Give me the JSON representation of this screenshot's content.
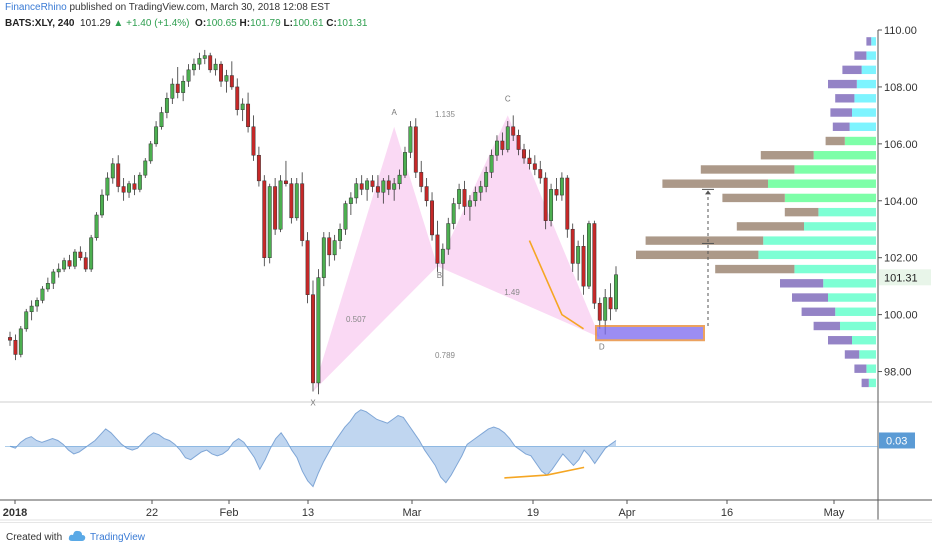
{
  "header": {
    "author": "FinanceRhino",
    "published_text": " published on TradingView.com, March 30, 2018 12:08 EST"
  },
  "ohlc": {
    "symbol": "BATS:XLY, 240",
    "last": "101.29",
    "change": "+1.40 (+1.4%)",
    "open_label": "O:",
    "open": "100.65",
    "high_label": "H:",
    "high": "101.79",
    "low_label": "L:",
    "low": "100.61",
    "close_label": "C:",
    "close": "101.31"
  },
  "footer": {
    "created_with": "Created with",
    "brand": "TradingView",
    "logo_icon": "tradingview-cloud-icon"
  },
  "colors": {
    "up": "#4caf50",
    "down": "#c62828",
    "candle_outline": "#333333",
    "pattern_fill": "#f8ccf0",
    "orange": "#f5a623",
    "target_box": "#7b68ee",
    "osc_fill": "#b9d2ee",
    "osc_line": "#7fa6d6",
    "price_badge": "#e8f5e9",
    "osc_badge": "#5b9bd5"
  },
  "chart_data": {
    "type": "candlestick",
    "price_axis": {
      "ylim": [
        97.0,
        110.0
      ],
      "ticks": [
        "110.00",
        "108.00",
        "106.00",
        "104.00",
        "102.00",
        "100.00",
        "98.00"
      ],
      "current_value_label": "101.31"
    },
    "time_axis": {
      "labels": [
        "2018",
        "22",
        "Feb",
        "13",
        "Mar",
        "19",
        "Apr",
        "16",
        "May"
      ]
    },
    "candles": [
      [
        99.2,
        99.4,
        98.9,
        99.1
      ],
      [
        99.1,
        99.3,
        98.4,
        98.6
      ],
      [
        98.6,
        99.6,
        98.5,
        99.5
      ],
      [
        99.5,
        100.2,
        99.4,
        100.1
      ],
      [
        100.1,
        100.5,
        99.8,
        100.3
      ],
      [
        100.3,
        100.6,
        100.1,
        100.5
      ],
      [
        100.5,
        101.0,
        100.4,
        100.9
      ],
      [
        100.9,
        101.3,
        100.8,
        101.1
      ],
      [
        101.1,
        101.6,
        100.9,
        101.5
      ],
      [
        101.5,
        101.8,
        101.3,
        101.6
      ],
      [
        101.6,
        102.0,
        101.5,
        101.9
      ],
      [
        101.9,
        102.1,
        101.6,
        101.7
      ],
      [
        101.7,
        102.3,
        101.6,
        102.2
      ],
      [
        102.2,
        102.4,
        101.9,
        102.0
      ],
      [
        102.0,
        102.2,
        101.5,
        101.6
      ],
      [
        101.6,
        102.8,
        101.5,
        102.7
      ],
      [
        102.7,
        103.6,
        102.6,
        103.5
      ],
      [
        103.5,
        104.4,
        103.4,
        104.2
      ],
      [
        104.2,
        105.0,
        104.0,
        104.8
      ],
      [
        104.8,
        105.5,
        104.6,
        105.3
      ],
      [
        105.3,
        105.6,
        104.3,
        104.5
      ],
      [
        104.5,
        104.8,
        104.0,
        104.3
      ],
      [
        104.3,
        104.7,
        104.1,
        104.6
      ],
      [
        104.6,
        104.9,
        104.2,
        104.4
      ],
      [
        104.4,
        105.0,
        104.3,
        104.9
      ],
      [
        104.9,
        105.5,
        104.8,
        105.4
      ],
      [
        105.4,
        106.1,
        105.3,
        106.0
      ],
      [
        106.0,
        106.8,
        105.9,
        106.6
      ],
      [
        106.6,
        107.3,
        106.5,
        107.1
      ],
      [
        107.1,
        107.8,
        106.9,
        107.6
      ],
      [
        107.6,
        108.3,
        107.4,
        108.1
      ],
      [
        108.1,
        108.7,
        107.6,
        107.8
      ],
      [
        107.8,
        108.4,
        107.5,
        108.2
      ],
      [
        108.2,
        108.8,
        108.0,
        108.6
      ],
      [
        108.6,
        109.0,
        108.4,
        108.8
      ],
      [
        108.8,
        109.2,
        108.6,
        109.0
      ],
      [
        109.0,
        109.3,
        108.8,
        109.1
      ],
      [
        109.1,
        109.2,
        108.5,
        108.6
      ],
      [
        108.6,
        109.0,
        108.4,
        108.8
      ],
      [
        108.8,
        108.9,
        108.0,
        108.2
      ],
      [
        108.2,
        108.6,
        107.8,
        108.4
      ],
      [
        108.4,
        108.9,
        107.9,
        108.0
      ],
      [
        108.0,
        108.3,
        107.0,
        107.2
      ],
      [
        107.2,
        107.6,
        106.8,
        107.4
      ],
      [
        107.4,
        107.8,
        106.4,
        106.6
      ],
      [
        106.6,
        107.0,
        105.4,
        105.6
      ],
      [
        105.6,
        105.9,
        104.5,
        104.7
      ],
      [
        104.7,
        104.9,
        101.7,
        102.0
      ],
      [
        102.0,
        104.6,
        101.8,
        104.5
      ],
      [
        104.5,
        104.8,
        102.8,
        103.0
      ],
      [
        103.0,
        104.9,
        102.9,
        104.7
      ],
      [
        104.7,
        105.4,
        104.5,
        104.6
      ],
      [
        104.6,
        104.8,
        103.2,
        103.4
      ],
      [
        103.4,
        104.8,
        103.3,
        104.6
      ],
      [
        104.6,
        105.0,
        102.4,
        102.6
      ],
      [
        102.6,
        102.9,
        100.4,
        100.7
      ],
      [
        100.7,
        101.2,
        97.3,
        97.6
      ],
      [
        97.6,
        101.6,
        97.2,
        101.3
      ],
      [
        101.3,
        102.9,
        101.0,
        102.7
      ],
      [
        102.7,
        102.9,
        101.7,
        102.1
      ],
      [
        102.1,
        102.8,
        101.9,
        102.6
      ],
      [
        102.6,
        103.2,
        102.3,
        103.0
      ],
      [
        103.0,
        104.0,
        102.8,
        103.9
      ],
      [
        103.9,
        104.3,
        103.5,
        104.1
      ],
      [
        104.1,
        104.8,
        103.9,
        104.6
      ],
      [
        104.6,
        104.9,
        104.2,
        104.4
      ],
      [
        104.4,
        104.8,
        104.0,
        104.7
      ],
      [
        104.7,
        104.9,
        104.3,
        104.5
      ],
      [
        104.5,
        104.9,
        104.1,
        104.3
      ],
      [
        104.3,
        104.8,
        103.9,
        104.7
      ],
      [
        104.7,
        104.9,
        104.2,
        104.4
      ],
      [
        104.4,
        104.8,
        104.0,
        104.6
      ],
      [
        104.6,
        105.1,
        104.4,
        104.9
      ],
      [
        104.9,
        105.9,
        104.8,
        105.7
      ],
      [
        105.7,
        106.8,
        105.5,
        106.6
      ],
      [
        106.6,
        106.9,
        104.8,
        105.0
      ],
      [
        105.0,
        105.4,
        104.3,
        104.5
      ],
      [
        104.5,
        104.8,
        103.8,
        104.0
      ],
      [
        104.0,
        104.3,
        102.6,
        102.8
      ],
      [
        102.8,
        103.3,
        101.5,
        101.8
      ],
      [
        101.8,
        102.5,
        101.0,
        102.3
      ],
      [
        102.3,
        103.4,
        102.1,
        103.2
      ],
      [
        103.2,
        104.1,
        103.0,
        103.9
      ],
      [
        103.9,
        104.6,
        103.7,
        104.4
      ],
      [
        104.4,
        104.7,
        103.5,
        103.8
      ],
      [
        103.8,
        104.2,
        103.3,
        104.0
      ],
      [
        104.0,
        104.5,
        103.8,
        104.3
      ],
      [
        104.3,
        104.7,
        104.0,
        104.5
      ],
      [
        104.5,
        105.2,
        104.3,
        105.0
      ],
      [
        105.0,
        105.8,
        104.8,
        105.6
      ],
      [
        105.6,
        106.3,
        105.4,
        106.1
      ],
      [
        106.1,
        106.4,
        105.6,
        105.8
      ],
      [
        105.8,
        106.8,
        105.7,
        106.6
      ],
      [
        106.6,
        107.0,
        106.1,
        106.3
      ],
      [
        106.3,
        106.5,
        105.6,
        105.8
      ],
      [
        105.8,
        106.0,
        105.3,
        105.5
      ],
      [
        105.5,
        105.8,
        105.1,
        105.3
      ],
      [
        105.3,
        105.6,
        104.9,
        105.1
      ],
      [
        105.1,
        105.4,
        104.6,
        104.8
      ],
      [
        104.8,
        105.0,
        103.0,
        103.3
      ],
      [
        103.3,
        104.6,
        103.1,
        104.4
      ],
      [
        104.4,
        104.8,
        104.0,
        104.2
      ],
      [
        104.2,
        105.0,
        104.0,
        104.8
      ],
      [
        104.8,
        104.9,
        102.7,
        103.0
      ],
      [
        103.0,
        103.2,
        101.5,
        101.8
      ],
      [
        101.8,
        102.6,
        101.2,
        102.4
      ],
      [
        102.4,
        102.8,
        100.7,
        101.0
      ],
      [
        101.0,
        103.3,
        100.9,
        103.2
      ],
      [
        103.2,
        103.3,
        100.2,
        100.4
      ],
      [
        100.4,
        100.6,
        99.5,
        99.8
      ],
      [
        99.8,
        100.9,
        99.3,
        100.6
      ],
      [
        100.6,
        101.1,
        99.8,
        100.2
      ],
      [
        100.2,
        101.7,
        100.1,
        101.4
      ]
    ],
    "harmonic_pattern": {
      "points": {
        "X": 97.3,
        "A": 106.6,
        "B": 101.7,
        "C": 107.0,
        "D": 99.2
      },
      "labels": [
        "X",
        "A",
        "B",
        "C",
        "D"
      ],
      "ratios": [
        "0.507",
        "0.789",
        "1.135",
        "1.49"
      ]
    },
    "target_zone": {
      "top": 99.6,
      "bottom": 99.1
    },
    "price_targets": [
      102.5,
      104.4
    ],
    "volume_profile": {
      "rows": [
        {
          "price": 109.6,
          "up": 0.02,
          "down": 0.02
        },
        {
          "price": 109.1,
          "up": 0.04,
          "down": 0.05
        },
        {
          "price": 108.6,
          "up": 0.06,
          "down": 0.08
        },
        {
          "price": 108.1,
          "up": 0.08,
          "down": 0.12
        },
        {
          "price": 107.6,
          "up": 0.09,
          "down": 0.08
        },
        {
          "price": 107.1,
          "up": 0.1,
          "down": 0.09
        },
        {
          "price": 106.6,
          "up": 0.11,
          "down": 0.07
        },
        {
          "price": 106.1,
          "up": 0.13,
          "down": 0.08
        },
        {
          "price": 105.6,
          "up": 0.26,
          "down": 0.22
        },
        {
          "price": 105.1,
          "up": 0.34,
          "down": 0.39
        },
        {
          "price": 104.6,
          "up": 0.45,
          "down": 0.44
        },
        {
          "price": 104.1,
          "up": 0.38,
          "down": 0.26
        },
        {
          "price": 103.6,
          "up": 0.24,
          "down": 0.14
        },
        {
          "price": 103.1,
          "up": 0.3,
          "down": 0.28
        },
        {
          "price": 102.6,
          "up": 0.47,
          "down": 0.49
        },
        {
          "price": 102.1,
          "up": 0.49,
          "down": 0.51
        },
        {
          "price": 101.6,
          "up": 0.34,
          "down": 0.33
        },
        {
          "price": 101.1,
          "up": 0.22,
          "down": 0.18
        },
        {
          "price": 100.6,
          "up": 0.2,
          "down": 0.15
        },
        {
          "price": 100.1,
          "up": 0.17,
          "down": 0.14
        },
        {
          "price": 99.6,
          "up": 0.15,
          "down": 0.11
        },
        {
          "price": 99.1,
          "up": 0.1,
          "down": 0.1
        },
        {
          "price": 98.6,
          "up": 0.07,
          "down": 0.06
        },
        {
          "price": 98.1,
          "up": 0.04,
          "down": 0.05
        },
        {
          "price": 97.6,
          "up": 0.03,
          "down": 0.03
        }
      ]
    },
    "oscillator": {
      "ylim": [
        -0.28,
        0.22
      ],
      "current_value_label": "0.03",
      "values": [
        0.0,
        -0.01,
        0.02,
        0.04,
        0.05,
        0.03,
        0.02,
        0.03,
        0.04,
        0.03,
        0.01,
        -0.02,
        -0.04,
        -0.03,
        -0.01,
        0.01,
        0.03,
        0.06,
        0.09,
        0.07,
        0.04,
        0.01,
        -0.01,
        -0.02,
        -0.01,
        0.02,
        0.05,
        0.07,
        0.06,
        0.04,
        0.03,
        0.01,
        -0.02,
        -0.06,
        -0.07,
        -0.05,
        -0.03,
        -0.02,
        -0.04,
        -0.05,
        -0.04,
        -0.02,
        0.02,
        0.04,
        0.02,
        -0.02,
        -0.06,
        -0.12,
        -0.07,
        -0.01,
        0.04,
        0.07,
        0.03,
        -0.02,
        -0.06,
        -0.13,
        -0.18,
        -0.21,
        -0.14,
        -0.08,
        -0.03,
        0.02,
        0.06,
        0.1,
        0.13,
        0.17,
        0.19,
        0.18,
        0.16,
        0.14,
        0.13,
        0.12,
        0.14,
        0.16,
        0.15,
        0.11,
        0.07,
        0.03,
        -0.02,
        -0.06,
        -0.1,
        -0.16,
        -0.19,
        -0.15,
        -0.1,
        -0.05,
        0.01,
        0.03,
        0.05,
        0.07,
        0.09,
        0.1,
        0.09,
        0.07,
        0.04,
        0.0,
        -0.02,
        -0.04,
        -0.05,
        -0.09,
        -0.13,
        -0.15,
        -0.12,
        -0.08,
        -0.04,
        -0.07,
        -0.1,
        -0.07,
        -0.02,
        -0.05,
        -0.09,
        -0.05,
        -0.01,
        0.01,
        0.03
      ],
      "divergence_line": [
        -0.15,
        -0.11
      ]
    }
  }
}
